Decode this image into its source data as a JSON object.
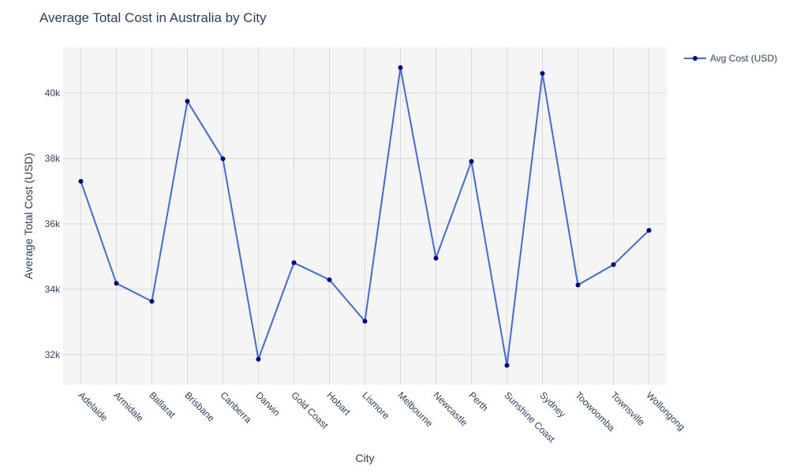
{
  "chart_data": {
    "type": "line",
    "title": "Average Total Cost in Australia by City",
    "xlabel": "City",
    "ylabel": "Average Total Cost (USD)",
    "categories": [
      "Adelaide",
      "Armidale",
      "Ballarat",
      "Brisbane",
      "Canberra",
      "Darwin",
      "Gold Coast",
      "Hobart",
      "Lismore",
      "Melbourne",
      "Newcastle",
      "Perth",
      "Sunshine Coast",
      "Sydney",
      "Toowoomba",
      "Townsville",
      "Wollongong"
    ],
    "series": [
      {
        "name": "Avg Cost (USD)",
        "values": [
          37300,
          34180,
          33630,
          39750,
          37990,
          31860,
          34810,
          34290,
          33020,
          40780,
          34950,
          37910,
          31670,
          40600,
          34130,
          34750,
          35800
        ],
        "line_color": "#4169e1",
        "marker_color": "#00008b"
      }
    ],
    "ylim": [
      31080,
      41400
    ],
    "yticks": [
      32000,
      34000,
      36000,
      38000,
      40000
    ],
    "ytick_labels": [
      "32k",
      "34k",
      "36k",
      "38k",
      "40k"
    ],
    "grid": true,
    "legend_position": "top-right",
    "colors": {
      "plot_bg": "#f5f5f5",
      "grid": "#d9d9d9",
      "text": "#2a3f5f"
    }
  }
}
